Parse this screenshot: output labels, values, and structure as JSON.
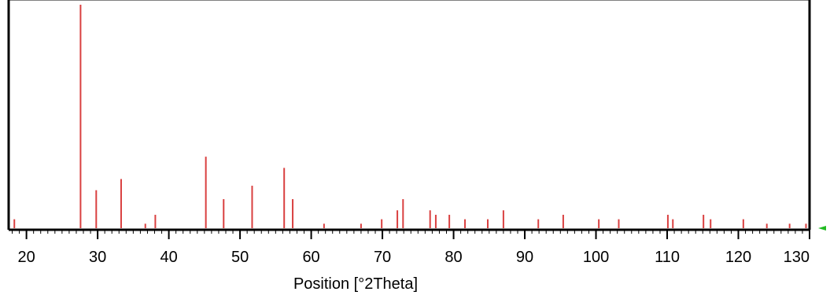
{
  "chart_data": {
    "type": "bar",
    "subtype": "stick-pattern",
    "xlabel": "Position [°2Theta]",
    "ylabel": "",
    "xlim": [
      17.5,
      130
    ],
    "ylim": [
      0,
      100
    ],
    "x_ticks": [
      20,
      30,
      40,
      50,
      60,
      70,
      80,
      90,
      100,
      110,
      120,
      130
    ],
    "grid": false,
    "bar_color": "#d94040",
    "axis_color": "#000000",
    "marker_color": "#22bb22",
    "series": [
      {
        "x": [
          18.3,
          27.6,
          29.8,
          33.3,
          36.7,
          38.1,
          45.2,
          47.7,
          51.7,
          56.2,
          57.4,
          61.8,
          67.0,
          69.9,
          72.1,
          72.9,
          76.7,
          77.5,
          79.4,
          81.6,
          84.8,
          87.0,
          91.9,
          95.4,
          100.4,
          103.2,
          110.1,
          110.8,
          115.1,
          116.1,
          120.7,
          124.0,
          127.2,
          129.5
        ],
        "values": [
          4,
          100,
          17,
          22,
          2,
          6,
          32,
          13,
          19,
          27,
          13,
          2,
          2,
          4,
          8,
          13,
          8,
          6,
          6,
          4,
          4,
          8,
          4,
          6,
          4,
          4,
          6,
          4,
          6,
          4,
          4,
          2,
          2,
          2
        ]
      }
    ]
  }
}
